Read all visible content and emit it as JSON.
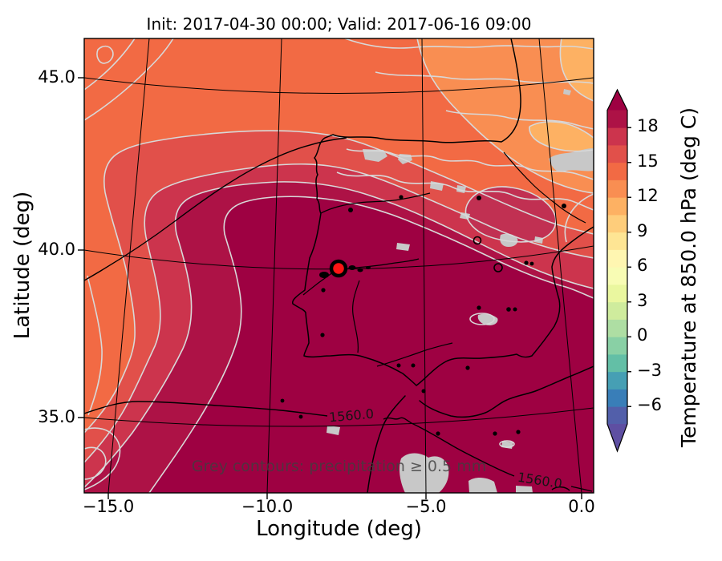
{
  "figure": {
    "title": "Init: 2017-04-30 00:00; Valid: 2017-06-16 09:00"
  },
  "axes": {
    "xlabel": "Longitude (deg)",
    "ylabel": "Latitude (deg)",
    "xticks": [
      "−15.0",
      "−10.0",
      "−5.0",
      "0.0"
    ],
    "yticks": [
      "45.0",
      "40.0",
      "35.0"
    ]
  },
  "colorbar": {
    "label": "Temperature at 850.0 hPa (deg C)",
    "ticks": [
      "18",
      "15",
      "12",
      "9",
      "6",
      "3",
      "0",
      "−3",
      "−6"
    ],
    "over_color": "#9E0142",
    "under_color": "#5E4FA2",
    "segment_colors_bottom_to_top": [
      "#525FAA",
      "#397EB8",
      "#469FB4",
      "#63BFA6",
      "#89D0A5",
      "#AEDEA3",
      "#CFEC9D",
      "#EAF79F",
      "#F8FCB4",
      "#FFF6B1",
      "#FEE594",
      "#FECD7B",
      "#FDB163",
      "#F98E52",
      "#F26A44",
      "#E1504A",
      "#CC344D",
      "#AD1246"
    ]
  },
  "map": {
    "annotation": "Grey contours: precipitation ≥ 0.5 mm",
    "contour_label_1": "1560.0",
    "contour_label_2": "1560.0",
    "marker": {
      "shape": "circle",
      "fill": "#FF1414",
      "outline": "#000000"
    }
  },
  "colors": {
    "orange_light": "#FDB163",
    "orange": "#F98E52",
    "orange_red": "#F26A44",
    "red": "#E1504A",
    "crimson": "#CC344D",
    "dark_crimson": "#AD1246",
    "core": "#9E0142",
    "ne_patch": "#C13052",
    "precip_line": "#D8D8D8",
    "precip_shade": "#C8C8C8",
    "outline": "#000000",
    "marker_fill": "#FF1414",
    "annotation_grey": "#3F3F3F"
  },
  "chart_data": {
    "type": "heatmap",
    "title": "Init: 2017-04-30 00:00; Valid: 2017-06-16 09:00",
    "xlabel": "Longitude (deg)",
    "ylabel": "Latitude (deg)",
    "xticks": [
      -15.0,
      -10.0,
      -5.0,
      0.0
    ],
    "yticks": [
      45.0,
      40.0,
      35.0
    ],
    "xlim_deg": [
      -16.2,
      0.8
    ],
    "ylim_deg": [
      32.7,
      46.3
    ],
    "field": "Temperature at 850.0 hPa (deg C)",
    "colormap": "Spectral_r discrete",
    "color_levels_degC": [
      -7.5,
      -6,
      -4.5,
      -3,
      -1.5,
      0,
      1.5,
      3,
      4.5,
      6,
      7.5,
      9,
      10.5,
      12,
      13.5,
      15,
      16.5,
      18,
      19.5
    ],
    "colorbar_ticks": [
      18,
      15,
      12,
      9,
      6,
      3,
      0,
      -3,
      -6
    ],
    "extend": "both",
    "overlays": [
      {
        "name": "geopotential-height-contours",
        "color": "black",
        "labels": [
          1560.0,
          1560.0
        ]
      },
      {
        "name": "precipitation-contours",
        "color": "grey",
        "threshold_mm": 0.5
      },
      {
        "name": "precipitation-shading",
        "color": "grey"
      },
      {
        "name": "coastlines-and-rivers",
        "color": "black"
      },
      {
        "name": "location-marker",
        "lon": -8.0,
        "lat": 39.4,
        "marker": "red circle with black edge"
      }
    ],
    "field_summary": [
      {
        "region": "Iberian Peninsula interior, south and east (bulk of map)",
        "temp_degC": "> 19.5"
      },
      {
        "region": "NW Atlantic fan of bands toward west edge",
        "temp_degC": "13.5 - 19.5 decreasing westward"
      },
      {
        "region": "Top edge / Bay of Biscay and S France",
        "temp_degC": "10.5 - 15"
      },
      {
        "region": "Top-right corner patches",
        "temp_degC": "10.5 - 12"
      },
      {
        "region": "North Spain coastal strip",
        "temp_degC": "15 - 18"
      }
    ]
  }
}
